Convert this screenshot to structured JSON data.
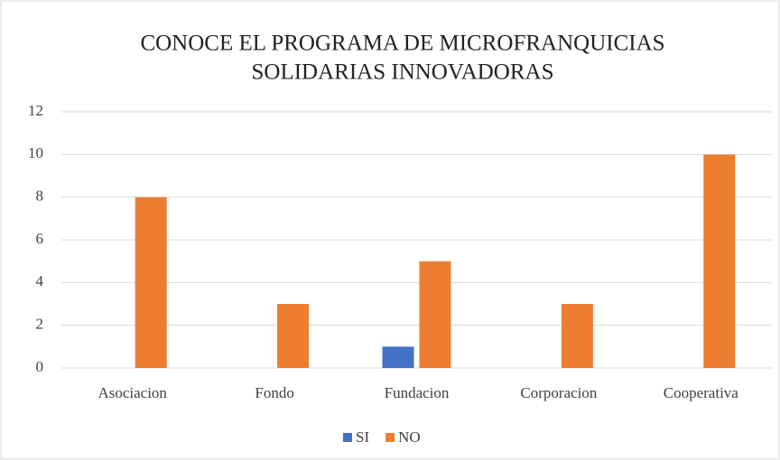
{
  "chart_data": {
    "type": "bar",
    "title": [
      "CONOCE EL PROGRAMA DE MICROFRANQUICIAS",
      "SOLIDARIAS INNOVADORAS"
    ],
    "categories": [
      "Asociacion",
      "Fondo",
      "Fundacion",
      "Corporacion",
      "Cooperativa"
    ],
    "series": [
      {
        "name": "SI",
        "color": "#4472c4",
        "values": [
          0,
          0,
          1,
          0,
          0
        ]
      },
      {
        "name": "NO",
        "color": "#ed7d31",
        "values": [
          8,
          3,
          5,
          3,
          10
        ]
      }
    ],
    "ylim": [
      0,
      12
    ],
    "yticks": [
      0,
      2,
      4,
      6,
      8,
      10,
      12
    ],
    "grid": true,
    "legend": "bottom"
  }
}
